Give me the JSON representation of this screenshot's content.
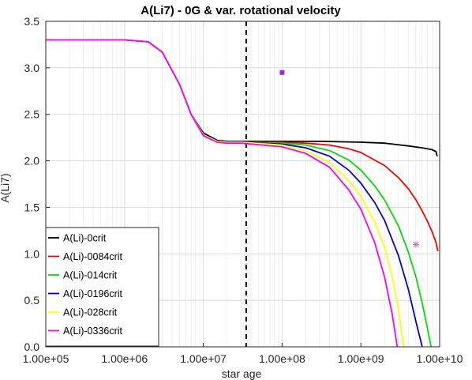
{
  "chart_data": {
    "type": "line",
    "title": "A(Li7) - 0G & var. rotational velocity",
    "xlabel": "star age",
    "ylabel": "A(Li7)",
    "xscale": "log",
    "xlim": [
      100000,
      10000000000
    ],
    "ylim": [
      0,
      3.5
    ],
    "x_ticks": [
      100000,
      1000000,
      10000000,
      100000000,
      1000000000,
      10000000000
    ],
    "x_tick_labels": [
      "1.00e+05",
      "1.00e+06",
      "1.00e+07",
      "1.00e+08",
      "1.00e+09",
      "1.00e+10"
    ],
    "y_ticks": [
      0,
      0.5,
      1,
      1.5,
      2,
      2.5,
      3,
      3.5
    ],
    "y_tick_labels": [
      "0.0",
      "0.5",
      "1.0",
      "1.5",
      "2.0",
      "2.5",
      "3.0",
      "3.5"
    ],
    "grid": true,
    "legend_position": "bottom-left",
    "vertical_line": {
      "x": 35000000,
      "style": "dashed",
      "color": "#000000"
    },
    "markers": [
      {
        "x": 100000000,
        "y": 2.95,
        "shape": "square",
        "color": "#9b30c8"
      },
      {
        "x": 5000000000,
        "y": 1.1,
        "shape": "asterisk",
        "color": "#b07ad8"
      }
    ],
    "series": [
      {
        "name": "A(Li)-0crit",
        "color": "#000000",
        "x": [
          100000,
          500000,
          1000000,
          2000000,
          3000000,
          5000000,
          7000000,
          10000000,
          15000000,
          20000000,
          30000000,
          100000000,
          300000000,
          1000000000,
          2000000000,
          4000000000,
          6000000000,
          8000000000,
          9000000000,
          9300000000
        ],
        "y": [
          3.3,
          3.3,
          3.3,
          3.28,
          3.17,
          2.82,
          2.5,
          2.3,
          2.22,
          2.21,
          2.21,
          2.21,
          2.21,
          2.2,
          2.19,
          2.16,
          2.14,
          2.12,
          2.1,
          2.05
        ]
      },
      {
        "name": "A(Li)-0084crit",
        "color": "#ff0000",
        "x": [
          100000,
          500000,
          1000000,
          2000000,
          3000000,
          5000000,
          7000000,
          10000000,
          15000000,
          20000000,
          30000000,
          100000000,
          200000000,
          400000000,
          700000000,
          1000000000,
          2000000000,
          3000000000,
          4000000000,
          5000000000,
          6000000000,
          7000000000,
          8000000000,
          9000000000,
          9500000000
        ],
        "y": [
          3.3,
          3.3,
          3.3,
          3.28,
          3.17,
          2.82,
          2.5,
          2.28,
          2.21,
          2.2,
          2.2,
          2.2,
          2.19,
          2.17,
          2.13,
          2.09,
          1.95,
          1.82,
          1.7,
          1.58,
          1.46,
          1.35,
          1.24,
          1.12,
          1.03
        ]
      },
      {
        "name": "A(Li)-014crit",
        "color": "#00e000",
        "x": [
          100000,
          500000,
          1000000,
          2000000,
          3000000,
          5000000,
          7000000,
          10000000,
          15000000,
          20000000,
          30000000,
          100000000,
          200000000,
          400000000,
          700000000,
          1000000000,
          1500000000,
          2000000000,
          3000000000,
          4000000000,
          5000000000,
          6000000000,
          7000000000,
          7800000000
        ],
        "y": [
          3.3,
          3.3,
          3.3,
          3.28,
          3.17,
          2.82,
          2.5,
          2.28,
          2.21,
          2.2,
          2.2,
          2.19,
          2.17,
          2.11,
          2.01,
          1.9,
          1.73,
          1.58,
          1.3,
          1.02,
          0.75,
          0.47,
          0.2,
          0.0
        ]
      },
      {
        "name": "A(Li)-0196crit",
        "color": "#0000e6",
        "x": [
          100000,
          500000,
          1000000,
          2000000,
          3000000,
          5000000,
          7000000,
          10000000,
          15000000,
          20000000,
          30000000,
          100000000,
          200000000,
          400000000,
          700000000,
          1000000000,
          1500000000,
          2000000000,
          3000000000,
          4000000000,
          5000000000,
          6000000000
        ],
        "y": [
          3.3,
          3.3,
          3.3,
          3.28,
          3.17,
          2.82,
          2.5,
          2.28,
          2.21,
          2.2,
          2.2,
          2.18,
          2.14,
          2.05,
          1.9,
          1.76,
          1.55,
          1.36,
          0.98,
          0.62,
          0.27,
          0.0
        ]
      },
      {
        "name": "A(Li)-028crit",
        "color": "#ffff00",
        "x": [
          100000,
          500000,
          1000000,
          2000000,
          3000000,
          5000000,
          7000000,
          10000000,
          15000000,
          20000000,
          30000000,
          100000000,
          200000000,
          400000000,
          700000000,
          1000000000,
          1500000000,
          2000000000,
          2500000000,
          3000000000,
          3500000000
        ],
        "y": [
          3.3,
          3.3,
          3.3,
          3.28,
          3.17,
          2.82,
          2.5,
          2.28,
          2.21,
          2.2,
          2.2,
          2.17,
          2.11,
          1.98,
          1.79,
          1.62,
          1.34,
          1.07,
          0.75,
          0.4,
          0.0
        ]
      },
      {
        "name": "A(Li)-0336crit",
        "color": "#ff00ff",
        "x": [
          100000,
          500000,
          1000000,
          2000000,
          3000000,
          5000000,
          7000000,
          10000000,
          15000000,
          20000000,
          30000000,
          100000000,
          200000000,
          400000000,
          700000000,
          1000000000,
          1500000000,
          2000000000,
          2500000000,
          2900000000
        ],
        "y": [
          3.3,
          3.3,
          3.3,
          3.28,
          3.17,
          2.82,
          2.5,
          2.27,
          2.2,
          2.19,
          2.19,
          2.15,
          2.08,
          1.93,
          1.69,
          1.48,
          1.12,
          0.75,
          0.35,
          0.0
        ]
      }
    ]
  }
}
